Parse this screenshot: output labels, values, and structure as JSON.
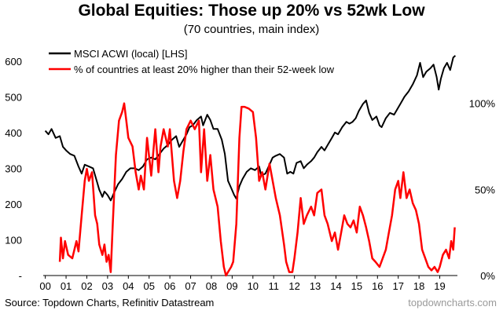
{
  "chart_data": {
    "type": "line",
    "title": "Global Equities: Those up 20% vs 52wk Low",
    "subtitle": "(70 countries, main index)",
    "x_tick_labels": [
      "00",
      "01",
      "02",
      "03",
      "04",
      "05",
      "06",
      "07",
      "08",
      "09",
      "10",
      "11",
      "12",
      "13",
      "14",
      "15",
      "16",
      "17",
      "18",
      "19"
    ],
    "left_axis": {
      "range": [
        0,
        650
      ],
      "ticks": [
        0,
        100,
        200,
        300,
        400,
        500,
        600
      ],
      "labels": [
        "-",
        "100",
        "200",
        "300",
        "400",
        "500",
        "600"
      ]
    },
    "right_axis": {
      "range": [
        0,
        1.35
      ],
      "ticks": [
        0,
        0.5,
        1.0
      ],
      "labels": [
        "0%",
        "50%",
        "100%"
      ]
    },
    "legend_placement": "top-left",
    "grid": false,
    "series": [
      {
        "name": "MSCI ACWI (local) [LHS]",
        "color": "#000000",
        "axis": "left",
        "points": [
          [
            2000.0,
            405
          ],
          [
            2000.15,
            395
          ],
          [
            2000.3,
            410
          ],
          [
            2000.5,
            385
          ],
          [
            2000.7,
            390
          ],
          [
            2000.85,
            360
          ],
          [
            2001.0,
            350
          ],
          [
            2001.2,
            340
          ],
          [
            2001.4,
            335
          ],
          [
            2001.6,
            305
          ],
          [
            2001.75,
            285
          ],
          [
            2001.9,
            310
          ],
          [
            2002.1,
            305
          ],
          [
            2002.3,
            300
          ],
          [
            2002.5,
            260
          ],
          [
            2002.6,
            240
          ],
          [
            2002.75,
            220
          ],
          [
            2002.85,
            235
          ],
          [
            2003.0,
            225
          ],
          [
            2003.15,
            210
          ],
          [
            2003.3,
            230
          ],
          [
            2003.5,
            255
          ],
          [
            2003.7,
            270
          ],
          [
            2003.9,
            290
          ],
          [
            2004.1,
            300
          ],
          [
            2004.3,
            300
          ],
          [
            2004.5,
            295
          ],
          [
            2004.7,
            305
          ],
          [
            2004.9,
            325
          ],
          [
            2005.1,
            330
          ],
          [
            2005.3,
            325
          ],
          [
            2005.5,
            340
          ],
          [
            2005.7,
            355
          ],
          [
            2005.9,
            365
          ],
          [
            2006.1,
            380
          ],
          [
            2006.3,
            390
          ],
          [
            2006.45,
            360
          ],
          [
            2006.6,
            375
          ],
          [
            2006.8,
            395
          ],
          [
            2006.95,
            415
          ],
          [
            2007.1,
            420
          ],
          [
            2007.3,
            435
          ],
          [
            2007.5,
            445
          ],
          [
            2007.6,
            420
          ],
          [
            2007.8,
            450
          ],
          [
            2007.95,
            435
          ],
          [
            2008.1,
            410
          ],
          [
            2008.3,
            410
          ],
          [
            2008.5,
            380
          ],
          [
            2008.65,
            340
          ],
          [
            2008.8,
            265
          ],
          [
            2008.95,
            245
          ],
          [
            2009.1,
            225
          ],
          [
            2009.2,
            215
          ],
          [
            2009.35,
            250
          ],
          [
            2009.5,
            270
          ],
          [
            2009.7,
            290
          ],
          [
            2009.9,
            300
          ],
          [
            2010.1,
            295
          ],
          [
            2010.3,
            305
          ],
          [
            2010.4,
            280
          ],
          [
            2010.6,
            285
          ],
          [
            2010.8,
            310
          ],
          [
            2010.95,
            330
          ],
          [
            2011.1,
            335
          ],
          [
            2011.3,
            340
          ],
          [
            2011.5,
            330
          ],
          [
            2011.65,
            285
          ],
          [
            2011.8,
            290
          ],
          [
            2011.95,
            285
          ],
          [
            2012.1,
            315
          ],
          [
            2012.3,
            320
          ],
          [
            2012.45,
            300
          ],
          [
            2012.6,
            310
          ],
          [
            2012.8,
            320
          ],
          [
            2012.95,
            330
          ],
          [
            2013.1,
            345
          ],
          [
            2013.3,
            360
          ],
          [
            2013.45,
            350
          ],
          [
            2013.6,
            365
          ],
          [
            2013.8,
            385
          ],
          [
            2013.95,
            400
          ],
          [
            2014.1,
            395
          ],
          [
            2014.3,
            415
          ],
          [
            2014.5,
            430
          ],
          [
            2014.65,
            425
          ],
          [
            2014.8,
            430
          ],
          [
            2014.95,
            440
          ],
          [
            2015.1,
            460
          ],
          [
            2015.3,
            480
          ],
          [
            2015.45,
            490
          ],
          [
            2015.6,
            455
          ],
          [
            2015.75,
            435
          ],
          [
            2015.95,
            445
          ],
          [
            2016.1,
            420
          ],
          [
            2016.2,
            415
          ],
          [
            2016.4,
            440
          ],
          [
            2016.6,
            455
          ],
          [
            2016.8,
            450
          ],
          [
            2016.95,
            465
          ],
          [
            2017.1,
            480
          ],
          [
            2017.3,
            500
          ],
          [
            2017.5,
            515
          ],
          [
            2017.7,
            535
          ],
          [
            2017.9,
            560
          ],
          [
            2018.05,
            595
          ],
          [
            2018.2,
            555
          ],
          [
            2018.35,
            570
          ],
          [
            2018.55,
            580
          ],
          [
            2018.7,
            590
          ],
          [
            2018.85,
            555
          ],
          [
            2018.95,
            520
          ],
          [
            2019.05,
            550
          ],
          [
            2019.2,
            580
          ],
          [
            2019.35,
            595
          ],
          [
            2019.5,
            575
          ],
          [
            2019.65,
            610
          ],
          [
            2019.75,
            615
          ]
        ]
      },
      {
        "name": "% of countries at least 20% higher than their 52-week low",
        "color": "#ff0000",
        "axis": "right",
        "points": [
          [
            2000.7,
            0.08
          ],
          [
            2000.75,
            0.22
          ],
          [
            2000.85,
            0.1
          ],
          [
            2000.95,
            0.2
          ],
          [
            2001.1,
            0.12
          ],
          [
            2001.3,
            0.1
          ],
          [
            2001.5,
            0.2
          ],
          [
            2001.6,
            0.14
          ],
          [
            2001.75,
            0.35
          ],
          [
            2001.9,
            0.55
          ],
          [
            2002.0,
            0.62
          ],
          [
            2002.1,
            0.55
          ],
          [
            2002.25,
            0.6
          ],
          [
            2002.4,
            0.35
          ],
          [
            2002.5,
            0.3
          ],
          [
            2002.6,
            0.18
          ],
          [
            2002.75,
            0.12
          ],
          [
            2002.85,
            0.18
          ],
          [
            2002.95,
            0.08
          ],
          [
            2003.05,
            0.12
          ],
          [
            2003.15,
            0.02
          ],
          [
            2003.25,
            0.3
          ],
          [
            2003.4,
            0.7
          ],
          [
            2003.55,
            0.9
          ],
          [
            2003.7,
            0.95
          ],
          [
            2003.8,
            1.0
          ],
          [
            2003.9,
            0.9
          ],
          [
            2004.0,
            0.8
          ],
          [
            2004.2,
            0.75
          ],
          [
            2004.35,
            0.6
          ],
          [
            2004.5,
            0.5
          ],
          [
            2004.6,
            0.58
          ],
          [
            2004.75,
            0.5
          ],
          [
            2004.9,
            0.8
          ],
          [
            2005.1,
            0.58
          ],
          [
            2005.3,
            0.85
          ],
          [
            2005.45,
            0.6
          ],
          [
            2005.55,
            0.75
          ],
          [
            2005.7,
            0.85
          ],
          [
            2005.9,
            0.75
          ],
          [
            2006.0,
            0.85
          ],
          [
            2006.2,
            0.55
          ],
          [
            2006.35,
            0.45
          ],
          [
            2006.5,
            0.55
          ],
          [
            2006.65,
            0.72
          ],
          [
            2006.8,
            0.85
          ],
          [
            2007.0,
            0.9
          ],
          [
            2007.2,
            0.85
          ],
          [
            2007.4,
            0.9
          ],
          [
            2007.5,
            0.6
          ],
          [
            2007.65,
            0.85
          ],
          [
            2007.8,
            0.55
          ],
          [
            2007.95,
            0.7
          ],
          [
            2008.1,
            0.5
          ],
          [
            2008.3,
            0.4
          ],
          [
            2008.45,
            0.2
          ],
          [
            2008.6,
            0.05
          ],
          [
            2008.7,
            0.0
          ],
          [
            2008.8,
            0.02
          ],
          [
            2008.95,
            0.05
          ],
          [
            2009.05,
            0.08
          ],
          [
            2009.2,
            0.3
          ],
          [
            2009.35,
            0.8
          ],
          [
            2009.45,
            0.98
          ],
          [
            2009.6,
            0.98
          ],
          [
            2009.8,
            0.97
          ],
          [
            2010.0,
            0.95
          ],
          [
            2010.15,
            0.8
          ],
          [
            2010.3,
            0.55
          ],
          [
            2010.45,
            0.6
          ],
          [
            2010.6,
            0.5
          ],
          [
            2010.8,
            0.65
          ],
          [
            2010.95,
            0.55
          ],
          [
            2011.1,
            0.45
          ],
          [
            2011.3,
            0.35
          ],
          [
            2011.5,
            0.18
          ],
          [
            2011.6,
            0.08
          ],
          [
            2011.75,
            0.02
          ],
          [
            2011.9,
            0.02
          ],
          [
            2012.0,
            0.1
          ],
          [
            2012.15,
            0.25
          ],
          [
            2012.3,
            0.45
          ],
          [
            2012.45,
            0.3
          ],
          [
            2012.6,
            0.35
          ],
          [
            2012.8,
            0.4
          ],
          [
            2012.95,
            0.35
          ],
          [
            2013.1,
            0.48
          ],
          [
            2013.3,
            0.5
          ],
          [
            2013.45,
            0.35
          ],
          [
            2013.6,
            0.3
          ],
          [
            2013.8,
            0.2
          ],
          [
            2013.95,
            0.25
          ],
          [
            2014.1,
            0.15
          ],
          [
            2014.25,
            0.25
          ],
          [
            2014.4,
            0.35
          ],
          [
            2014.55,
            0.3
          ],
          [
            2014.7,
            0.28
          ],
          [
            2014.85,
            0.32
          ],
          [
            2015.0,
            0.25
          ],
          [
            2015.15,
            0.4
          ],
          [
            2015.3,
            0.35
          ],
          [
            2015.45,
            0.28
          ],
          [
            2015.6,
            0.2
          ],
          [
            2015.75,
            0.1
          ],
          [
            2015.9,
            0.08
          ],
          [
            2016.1,
            0.05
          ],
          [
            2016.25,
            0.1
          ],
          [
            2016.4,
            0.15
          ],
          [
            2016.55,
            0.25
          ],
          [
            2016.7,
            0.35
          ],
          [
            2016.85,
            0.5
          ],
          [
            2017.0,
            0.55
          ],
          [
            2017.1,
            0.45
          ],
          [
            2017.25,
            0.6
          ],
          [
            2017.4,
            0.45
          ],
          [
            2017.55,
            0.5
          ],
          [
            2017.7,
            0.42
          ],
          [
            2017.85,
            0.38
          ],
          [
            2018.0,
            0.3
          ],
          [
            2018.15,
            0.15
          ],
          [
            2018.3,
            0.1
          ],
          [
            2018.45,
            0.05
          ],
          [
            2018.6,
            0.03
          ],
          [
            2018.75,
            0.05
          ],
          [
            2018.9,
            0.02
          ],
          [
            2019.0,
            0.05
          ],
          [
            2019.15,
            0.12
          ],
          [
            2019.3,
            0.15
          ],
          [
            2019.45,
            0.1
          ],
          [
            2019.55,
            0.2
          ],
          [
            2019.65,
            0.15
          ],
          [
            2019.72,
            0.28
          ]
        ]
      }
    ]
  },
  "source": "Source: Topdown Charts, Refinitiv Datastream",
  "watermark": "topdowncharts.com"
}
